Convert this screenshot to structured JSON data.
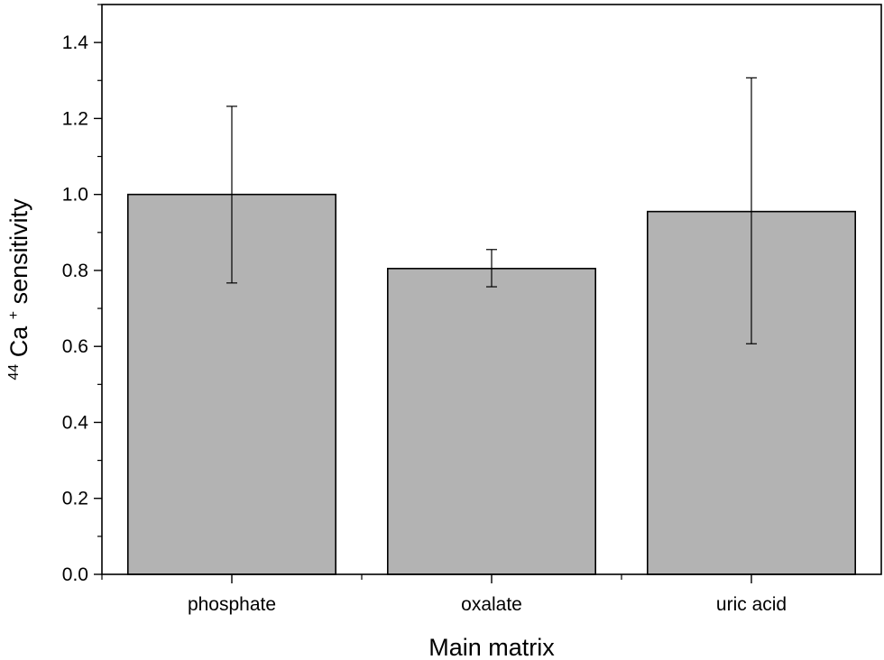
{
  "chart_data": {
    "type": "bar",
    "categories": [
      "phosphate",
      "oxalate",
      "uric acid"
    ],
    "values": [
      1.0,
      0.805,
      0.955
    ],
    "error_low": [
      0.767,
      0.757,
      0.607
    ],
    "error_high": [
      1.232,
      0.855,
      1.307
    ],
    "xlabel": "Main matrix",
    "ylabel": {
      "sup1": "44",
      "element": "Ca",
      "sup2": "+",
      "rest": " sensitivity"
    },
    "ylim": [
      0,
      1.5
    ],
    "yticks": [
      "0.0",
      "0.2",
      "0.4",
      "0.6",
      "0.8",
      "1.0",
      "1.2",
      "1.4"
    ],
    "ytick_values": [
      0,
      0.2,
      0.4,
      0.6,
      0.8,
      1.0,
      1.2,
      1.4
    ],
    "bar_color": "#b3b3b3",
    "grid": false,
    "legend": "none"
  }
}
